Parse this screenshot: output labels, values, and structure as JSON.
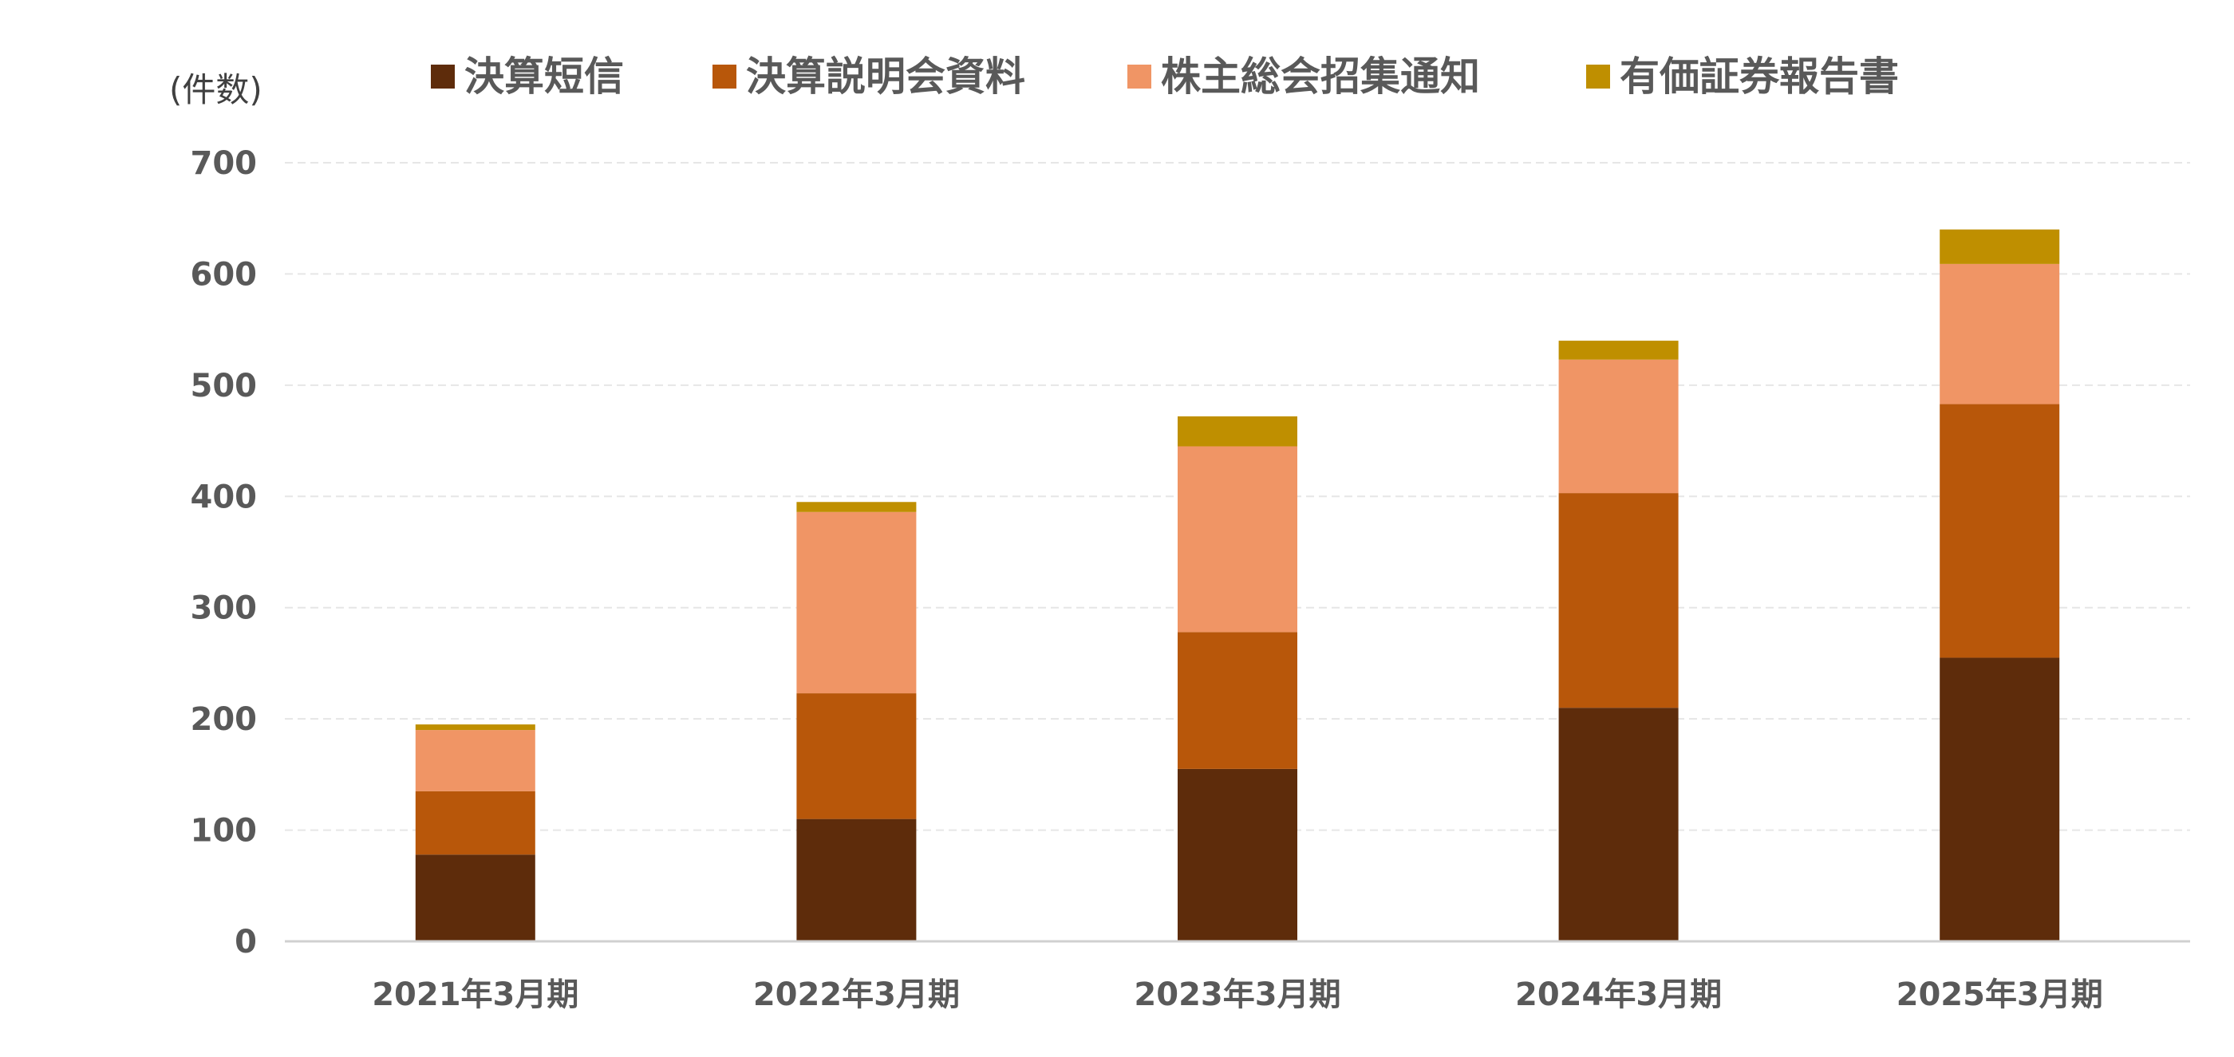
{
  "chart_data": {
    "type": "bar",
    "stacked": true,
    "unit_label": "(件数)",
    "categories": [
      "2021年3月期",
      "2022年3月期",
      "2023年3月期",
      "2024年3月期",
      "2025年3月期"
    ],
    "series": [
      {
        "name": "決算短信",
        "color": "#5e2c0b",
        "values": [
          78,
          110,
          155,
          210,
          255
        ]
      },
      {
        "name": "決算説明会資料",
        "color": "#b8570a",
        "values": [
          57,
          113,
          123,
          193,
          228
        ]
      },
      {
        "name": "株主総会招集通知",
        "color": "#f09565",
        "values": [
          55,
          163,
          167,
          120,
          126
        ]
      },
      {
        "name": "有価証券報告書",
        "color": "#bf8f00",
        "values": [
          5,
          9,
          27,
          17,
          31
        ]
      }
    ],
    "ylim": [
      0,
      700
    ],
    "yticks": [
      0,
      100,
      200,
      300,
      400,
      500,
      600,
      700
    ],
    "grid": true,
    "legend_position": "top",
    "xlabel": "",
    "ylabel": ""
  }
}
